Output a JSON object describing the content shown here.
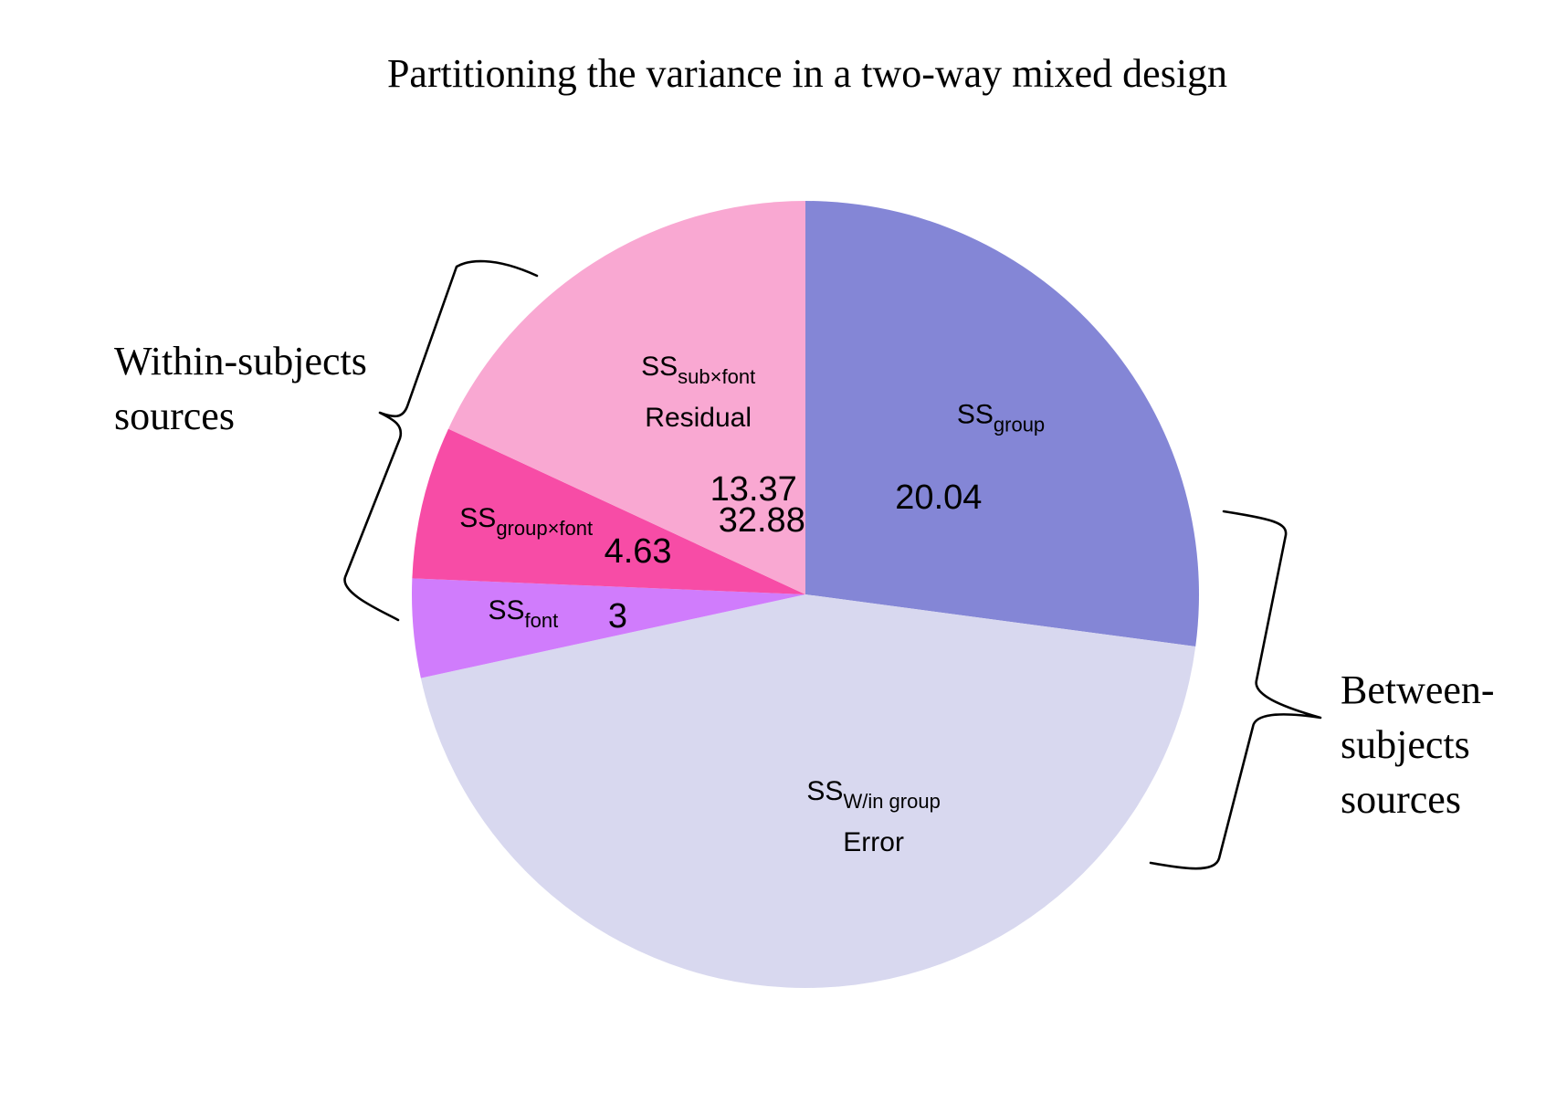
{
  "chart_data": {
    "type": "pie",
    "title": "Partitioning the variance in a two-way mixed design",
    "start": "12 o'clock",
    "direction": "clockwise",
    "slices": [
      {
        "key": "ss_group",
        "label_main": "SS",
        "label_sub": "group",
        "label_extra": "",
        "value": 20.04,
        "value_text": "20.04",
        "color": "#8486d6"
      },
      {
        "key": "ss_win_group",
        "label_main": "SS",
        "label_sub": "W/in group",
        "label_extra": "Error",
        "value": 32.88,
        "value_text": "32.88",
        "color": "#d8d8ef"
      },
      {
        "key": "ss_font",
        "label_main": "SS",
        "label_sub": "font",
        "label_extra": "",
        "value": 3,
        "value_text": "3",
        "color": "#d07cfc"
      },
      {
        "key": "ss_group_font",
        "label_main": "SS",
        "label_sub": "group×font",
        "label_extra": "",
        "value": 4.63,
        "value_text": "4.63",
        "color": "#f74ca6"
      },
      {
        "key": "ss_sub_font",
        "label_main": "SS",
        "label_sub": "sub×font",
        "label_extra": "Residual",
        "value": 13.37,
        "value_text": "13.37",
        "color": "#f9a8d2"
      }
    ],
    "groups": [
      {
        "name": "within",
        "lines": [
          "Within-subjects",
          "sources"
        ]
      },
      {
        "name": "between",
        "lines": [
          "Between-",
          "subjects",
          "sources"
        ]
      }
    ]
  }
}
